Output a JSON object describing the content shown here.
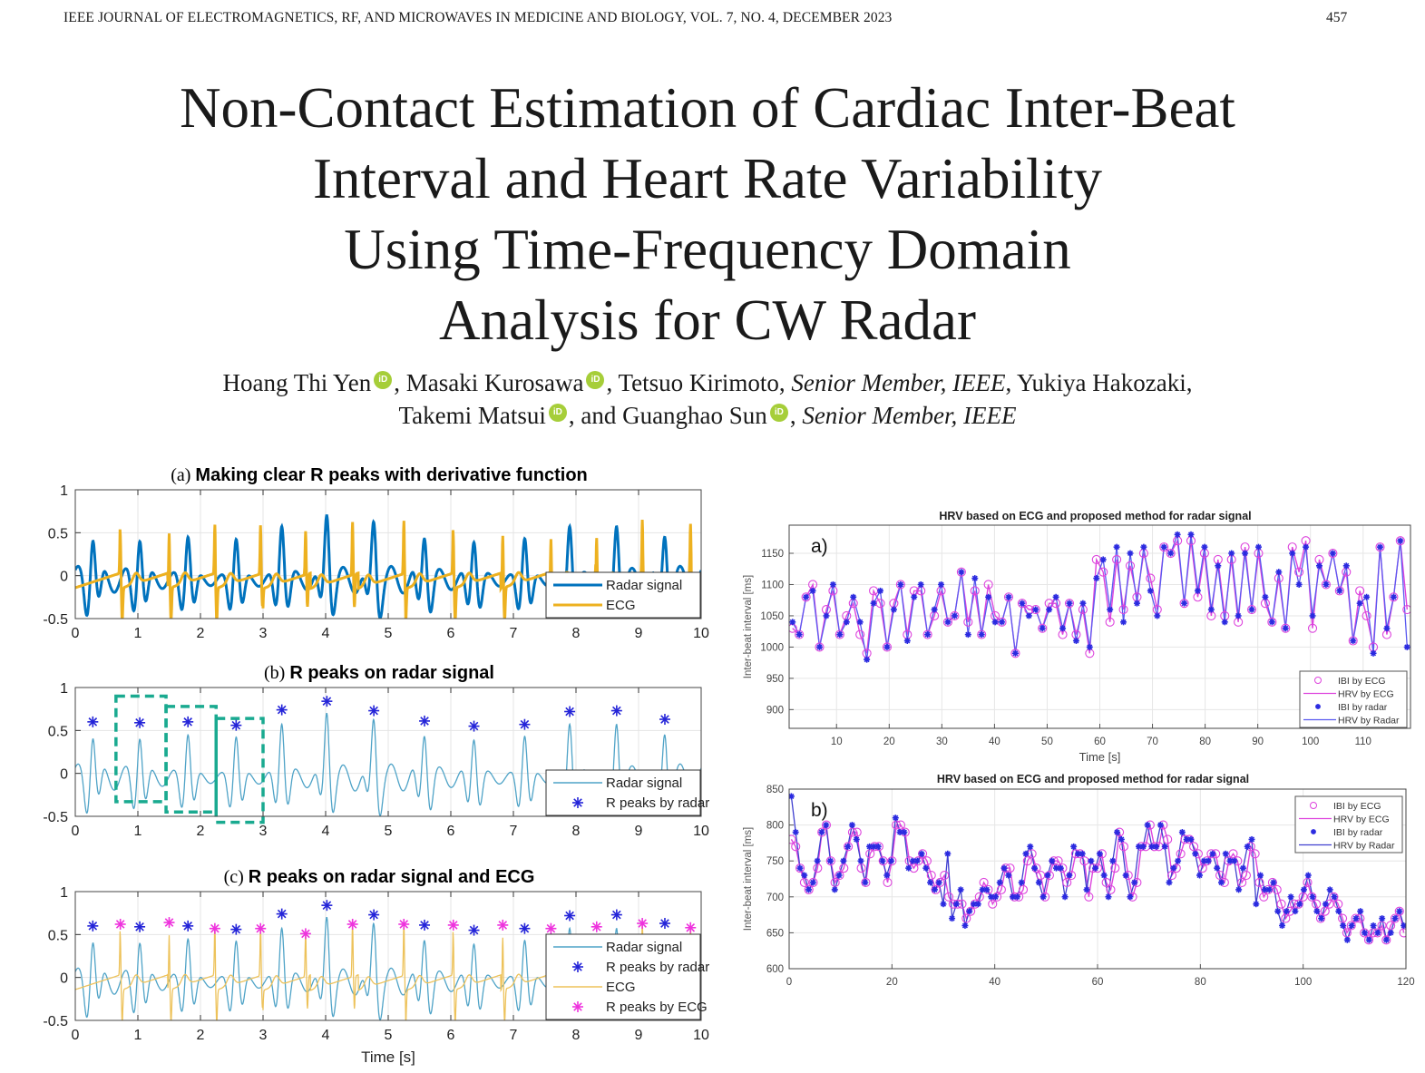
{
  "header": {
    "journal": "IEEE JOURNAL OF ELECTROMAGNETICS, RF, AND MICROWAVES IN MEDICINE AND BIOLOGY, VOL. 7, NO. 4, DECEMBER 2023",
    "page_number": "457"
  },
  "title_lines": [
    "Non-Contact Estimation of Cardiac Inter-Beat",
    "Interval and Heart Rate Variability",
    "Using Time-Frequency Domain",
    "Analysis for CW Radar"
  ],
  "authors": {
    "line1": [
      {
        "name": "Hoang Thi Yen",
        "orcid": true,
        "suffix": ", "
      },
      {
        "name": "Masaki Kurosawa",
        "orcid": true,
        "suffix": ", "
      },
      {
        "name": "Tetsuo Kirimoto",
        "orcid": false,
        "suffix": ", "
      },
      {
        "role": "Senior Member, IEEE",
        "suffix": ", "
      },
      {
        "name": "Yukiya Hakozaki",
        "orcid": false,
        "suffix": ","
      }
    ],
    "line2": [
      {
        "name": "Takemi Matsui",
        "orcid": true,
        "suffix": ", and "
      },
      {
        "name": "Guanghao Sun",
        "orcid": true,
        "suffix": ", "
      },
      {
        "role": "Senior Member, IEEE",
        "suffix": ""
      }
    ],
    "orcid_label": "iD",
    "orcid_color": "#a6ce39"
  },
  "chart_data": [
    {
      "id": "left-a",
      "type": "line",
      "title_prefix": "(a)",
      "title": "Making clear R peaks with derivative function",
      "xlabel": "",
      "ylabel": "",
      "xlim": [
        0,
        10
      ],
      "ylim": [
        -0.5,
        1
      ],
      "xticks": [
        "0",
        "1",
        "2",
        "3",
        "4",
        "5",
        "6",
        "7",
        "8",
        "9",
        "10"
      ],
      "yticks": [
        "-0.5",
        "0",
        "0.5",
        "1"
      ],
      "grid": true,
      "legend_position": "bottom-right",
      "series": [
        {
          "name": "Radar signal",
          "color": "#0072bd",
          "kind": "radar",
          "width": "thick"
        },
        {
          "name": "ECG",
          "color": "#edb120",
          "kind": "ecg",
          "width": "thick"
        }
      ]
    },
    {
      "id": "left-b",
      "type": "line",
      "title_prefix": "(b)",
      "title": "R peaks on radar signal",
      "xlim": [
        0,
        10
      ],
      "ylim": [
        -0.5,
        1
      ],
      "xticks": [
        "0",
        "1",
        "2",
        "3",
        "4",
        "5",
        "6",
        "7",
        "8",
        "9",
        "10"
      ],
      "yticks": [
        "-0.5",
        "0",
        "0.5",
        "1"
      ],
      "grid": true,
      "legend_position": "bottom-right",
      "series": [
        {
          "name": "Radar signal",
          "color": "#4fa3c7",
          "kind": "radar",
          "width": "thin"
        },
        {
          "name": "R peaks by radar",
          "color": "#2424d8",
          "kind": "radar-peaks",
          "marker": "asterisk"
        }
      ],
      "annotations": [
        {
          "type": "dashed-box",
          "color": "#1aaa90",
          "x": [
            0.65,
            1.45
          ],
          "y": [
            -0.33,
            0.9
          ]
        },
        {
          "type": "dashed-box",
          "color": "#1aaa90",
          "x": [
            1.45,
            2.25
          ],
          "y": [
            -0.45,
            0.78
          ]
        },
        {
          "type": "dashed-box",
          "color": "#1aaa90",
          "x": [
            2.25,
            3.0
          ],
          "y": [
            -0.57,
            0.64
          ]
        }
      ]
    },
    {
      "id": "left-c",
      "type": "line",
      "title_prefix": "(c)",
      "title": "R peaks on radar signal and ECG",
      "xlabel": "Time [s]",
      "xlim": [
        0,
        10
      ],
      "ylim": [
        -0.5,
        1
      ],
      "xticks": [
        "0",
        "1",
        "2",
        "3",
        "4",
        "5",
        "6",
        "7",
        "8",
        "9",
        "10"
      ],
      "yticks": [
        "-0.5",
        "0",
        "0.5",
        "1"
      ],
      "grid": true,
      "legend_position": "bottom-right",
      "series": [
        {
          "name": "Radar signal",
          "color": "#4fa3c7",
          "kind": "radar",
          "width": "thin"
        },
        {
          "name": "R peaks by radar",
          "color": "#2424d8",
          "kind": "radar-peaks",
          "marker": "asterisk"
        },
        {
          "name": "ECG",
          "color": "#edc25a",
          "kind": "ecg",
          "width": "thin"
        },
        {
          "name": "R peaks by ECG",
          "color": "#ee33dd",
          "kind": "ecg-peaks",
          "marker": "asterisk"
        }
      ]
    },
    {
      "id": "right-a",
      "type": "line",
      "panel_label": "a)",
      "title": "HRV based on ECG and proposed method for radar signal",
      "xlabel": "Time [s]",
      "ylabel": "Inter-beat interval [ms]",
      "xlim": [
        1,
        119
      ],
      "ylim": [
        870,
        1195
      ],
      "xticks": [
        "10",
        "20",
        "30",
        "40",
        "50",
        "60",
        "70",
        "80",
        "90",
        "100",
        "110"
      ],
      "xtick_values": [
        10,
        20,
        30,
        40,
        50,
        60,
        70,
        80,
        90,
        100,
        110
      ],
      "yticks": [
        "900",
        "950",
        "1000",
        "1050",
        "1100",
        "1150"
      ],
      "ytick_values": [
        900,
        950,
        1000,
        1050,
        1100,
        1150
      ],
      "grid": true,
      "legend_position": "bottom-right",
      "legend": [
        "IBI by ECG",
        "HRV by ECG",
        "IBI by radar",
        "HRV by Radar"
      ],
      "colors": {
        "ecg": "#dd44dd",
        "radar": "#2a2ae0",
        "radar_line": "#5a5af0"
      },
      "radar_ibi": [
        1040,
        1020,
        1080,
        1090,
        1000,
        1050,
        1100,
        1020,
        1040,
        1080,
        1040,
        980,
        1070,
        1090,
        1000,
        1060,
        1100,
        1010,
        1080,
        1100,
        1020,
        1060,
        1100,
        1040,
        1050,
        1120,
        1020,
        1110,
        1020,
        1080,
        1040,
        1040,
        1080,
        990,
        1070,
        1050,
        1060,
        1030,
        1060,
        1080,
        1030,
        1070,
        1010,
        1070,
        1000,
        1110,
        1140,
        1060,
        1160,
        1040,
        1150,
        1070,
        1160,
        1090,
        1050,
        1160,
        1150,
        1180,
        1070,
        1180,
        1090,
        1160,
        1060,
        1130,
        1040,
        1150,
        1050,
        1150,
        1060,
        1160,
        1080,
        1040,
        1120,
        1030,
        1150,
        1100,
        1160,
        1050,
        1130,
        1100,
        1150,
        1090,
        1130,
        1010,
        1070,
        1080,
        990,
        1160,
        1030,
        1080,
        1170,
        1000
      ],
      "ecg_ibi": [
        1030,
        1020,
        1080,
        1100,
        1000,
        1060,
        1090,
        1020,
        1050,
        1070,
        1020,
        990,
        1090,
        1070,
        1000,
        1070,
        1100,
        1020,
        1090,
        1090,
        1020,
        1050,
        1090,
        1040,
        1050,
        1120,
        1040,
        1090,
        1020,
        1100,
        1050,
        1040,
        1080,
        990,
        1070,
        1060,
        1060,
        1030,
        1070,
        1070,
        1020,
        1070,
        1020,
        1060,
        990,
        1140,
        1120,
        1040,
        1140,
        1060,
        1130,
        1080,
        1150,
        1110,
        1060,
        1160,
        1150,
        1170,
        1070,
        1170,
        1080,
        1150,
        1050,
        1140,
        1050,
        1140,
        1040,
        1160,
        1060,
        1150,
        1070,
        1040,
        1110,
        1030,
        1160,
        1120,
        1170,
        1030,
        1140,
        1100,
        1150,
        1090,
        1120,
        1010,
        1090,
        1050,
        1000,
        1160,
        1020,
        1080,
        1170,
        1060
      ]
    },
    {
      "id": "right-b",
      "type": "line",
      "panel_label": "b)",
      "title": "HRV based on ECG and proposed method for radar signal",
      "xlabel": "",
      "ylabel": "Inter-beat interval [ms]",
      "xlim": [
        0,
        120
      ],
      "ylim": [
        600,
        850
      ],
      "xticks": [
        "0",
        "20",
        "40",
        "60",
        "80",
        "100",
        "120"
      ],
      "xtick_values": [
        0,
        20,
        40,
        60,
        80,
        100,
        120
      ],
      "yticks": [
        "600",
        "650",
        "700",
        "750",
        "800",
        "850"
      ],
      "ytick_values": [
        600,
        650,
        700,
        750,
        800,
        850
      ],
      "grid": true,
      "legend_position": "top-right",
      "legend": [
        "IBI by ECG",
        "HRV by ECG",
        "IBI by radar",
        "HRV by Radar"
      ],
      "colors": {
        "ecg": "#dd44dd",
        "radar": "#2a2ae0",
        "radar_line": "#4040d0"
      },
      "radar_ibi": [
        840,
        790,
        740,
        730,
        710,
        720,
        750,
        790,
        800,
        750,
        710,
        730,
        750,
        770,
        800,
        780,
        750,
        720,
        770,
        770,
        770,
        750,
        730,
        750,
        810,
        790,
        790,
        740,
        750,
        750,
        760,
        740,
        720,
        710,
        720,
        690,
        760,
        670,
        690,
        710,
        660,
        680,
        690,
        690,
        710,
        710,
        700,
        700,
        720,
        740,
        730,
        700,
        700,
        720,
        760,
        770,
        740,
        720,
        700,
        730,
        750,
        740,
        740,
        700,
        730,
        770,
        760,
        760,
        710,
        750,
        740,
        760,
        730,
        700,
        750,
        790,
        780,
        730,
        700,
        720,
        770,
        770,
        800,
        770,
        770,
        800,
        770,
        720,
        740,
        750,
        790,
        780,
        780,
        760,
        730,
        750,
        750,
        760,
        740,
        720,
        760,
        750,
        750,
        710,
        740,
        770,
        780,
        690,
        730,
        710,
        710,
        720,
        680,
        660,
        680,
        700,
        680,
        690,
        710,
        730,
        700,
        680,
        670,
        690,
        710,
        700,
        680,
        660,
        640,
        660,
        670,
        680,
        650,
        640,
        660,
        650,
        670,
        640,
        650,
        670,
        680,
        660
      ],
      "ecg_ibi": [
        780,
        770,
        740,
        720,
        710,
        720,
        740,
        790,
        800,
        750,
        720,
        730,
        740,
        770,
        790,
        790,
        740,
        720,
        760,
        770,
        770,
        750,
        720,
        750,
        800,
        800,
        790,
        750,
        740,
        750,
        760,
        750,
        730,
        710,
        720,
        730,
        700,
        690,
        690,
        690,
        670,
        680,
        690,
        700,
        720,
        710,
        690,
        700,
        710,
        740,
        740,
        700,
        700,
        710,
        750,
        760,
        740,
        730,
        700,
        730,
        750,
        750,
        740,
        720,
        730,
        760,
        760,
        750,
        700,
        740,
        740,
        760,
        720,
        710,
        740,
        790,
        770,
        730,
        700,
        720,
        770,
        770,
        800,
        770,
        770,
        800,
        780,
        730,
        740,
        760,
        780,
        780,
        770,
        760,
        740,
        750,
        760,
        760,
        730,
        720,
        750,
        760,
        750,
        720,
        730,
        770,
        760,
        720,
        700,
        710,
        720,
        710,
        690,
        670,
        680,
        690,
        690,
        700,
        720,
        700,
        690,
        670,
        680,
        690,
        700,
        690,
        670,
        650,
        660,
        670,
        670,
        650,
        640,
        650,
        650,
        660,
        640,
        660,
        670,
        680,
        650
      ]
    }
  ],
  "signals": {
    "radar_peaks": [
      [
        0.28,
        0.6
      ],
      [
        1.03,
        0.59
      ],
      [
        1.8,
        0.6
      ],
      [
        2.57,
        0.56
      ],
      [
        3.3,
        0.74
      ],
      [
        4.02,
        0.84
      ],
      [
        4.77,
        0.73
      ],
      [
        5.58,
        0.61
      ],
      [
        6.37,
        0.55
      ],
      [
        7.18,
        0.57
      ],
      [
        7.9,
        0.72
      ],
      [
        8.65,
        0.73
      ],
      [
        9.42,
        0.63
      ]
    ],
    "ecg_peaks": [
      [
        0.72,
        0.62
      ],
      [
        1.5,
        0.64
      ],
      [
        2.23,
        0.57
      ],
      [
        2.96,
        0.57
      ],
      [
        3.68,
        0.51
      ],
      [
        4.43,
        0.62
      ],
      [
        5.25,
        0.62
      ],
      [
        6.04,
        0.61
      ],
      [
        6.83,
        0.61
      ],
      [
        7.6,
        0.57
      ],
      [
        8.33,
        0.59
      ],
      [
        9.06,
        0.63
      ],
      [
        9.83,
        0.58
      ]
    ]
  }
}
